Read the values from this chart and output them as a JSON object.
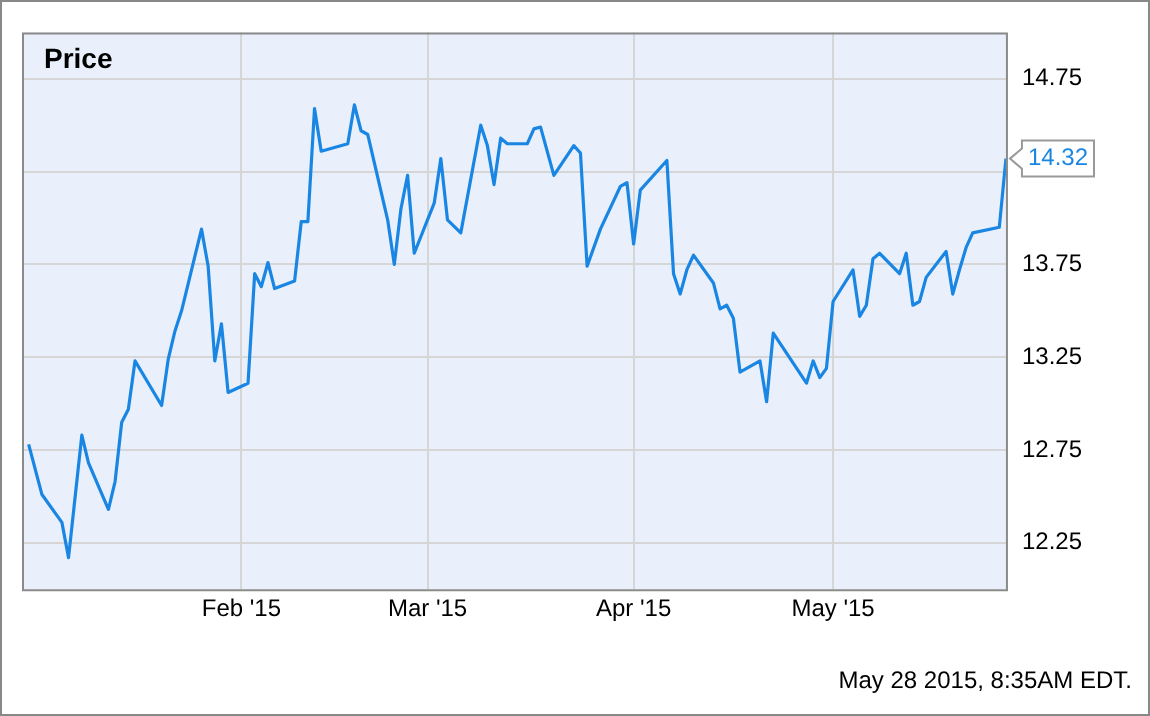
{
  "chart_data": {
    "type": "line",
    "title": "Price",
    "x": [
      "2014-12-31",
      "2015-01-02",
      "2015-01-05",
      "2015-01-06",
      "2015-01-08",
      "2015-01-09",
      "2015-01-12",
      "2015-01-13",
      "2015-01-14",
      "2015-01-15",
      "2015-01-16",
      "2015-01-20",
      "2015-01-21",
      "2015-01-22",
      "2015-01-23",
      "2015-01-26",
      "2015-01-27",
      "2015-01-28",
      "2015-01-29",
      "2015-01-30",
      "2015-02-02",
      "2015-02-03",
      "2015-02-04",
      "2015-02-05",
      "2015-02-06",
      "2015-02-09",
      "2015-02-10",
      "2015-02-11",
      "2015-02-12",
      "2015-02-13",
      "2015-02-17",
      "2015-02-18",
      "2015-02-19",
      "2015-02-20",
      "2015-02-23",
      "2015-02-24",
      "2015-02-25",
      "2015-02-26",
      "2015-02-27",
      "2015-03-02",
      "2015-03-03",
      "2015-03-04",
      "2015-03-06",
      "2015-03-09",
      "2015-03-10",
      "2015-03-11",
      "2015-03-12",
      "2015-03-13",
      "2015-03-16",
      "2015-03-17",
      "2015-03-18",
      "2015-03-20",
      "2015-03-23",
      "2015-03-24",
      "2015-03-25",
      "2015-03-27",
      "2015-03-30",
      "2015-03-31",
      "2015-04-01",
      "2015-04-02",
      "2015-04-06",
      "2015-04-07",
      "2015-04-08",
      "2015-04-09",
      "2015-04-10",
      "2015-04-13",
      "2015-04-14",
      "2015-04-15",
      "2015-04-16",
      "2015-04-17",
      "2015-04-20",
      "2015-04-21",
      "2015-04-22",
      "2015-04-27",
      "2015-04-28",
      "2015-04-29",
      "2015-04-30",
      "2015-05-01",
      "2015-05-04",
      "2015-05-05",
      "2015-05-06",
      "2015-05-07",
      "2015-05-08",
      "2015-05-11",
      "2015-05-12",
      "2015-05-13",
      "2015-05-14",
      "2015-05-15",
      "2015-05-18",
      "2015-05-19",
      "2015-05-20",
      "2015-05-21",
      "2015-05-22",
      "2015-05-26",
      "2015-05-27"
    ],
    "series": [
      {
        "color": "#1a86e3",
        "values": [
          12.78,
          12.51,
          12.36,
          12.17,
          12.83,
          12.68,
          12.43,
          12.58,
          12.9,
          12.97,
          13.23,
          12.99,
          13.24,
          13.39,
          13.5,
          13.94,
          13.74,
          13.23,
          13.43,
          13.06,
          13.11,
          13.7,
          13.63,
          13.76,
          13.62,
          13.66,
          13.98,
          13.98,
          14.59,
          14.36,
          14.4,
          14.61,
          14.47,
          14.45,
          13.99,
          13.75,
          14.05,
          14.23,
          13.81,
          14.08,
          14.32,
          13.99,
          13.92,
          14.5,
          14.39,
          14.18,
          14.43,
          14.4,
          14.4,
          14.48,
          14.49,
          14.23,
          14.39,
          14.35,
          13.74,
          13.94,
          14.17,
          14.19,
          13.86,
          14.15,
          14.31,
          13.7,
          13.59,
          13.72,
          13.8,
          13.65,
          13.51,
          13.53,
          13.46,
          13.17,
          13.23,
          13.01,
          13.38,
          13.11,
          13.23,
          13.14,
          13.19,
          13.55,
          13.72,
          13.47,
          13.53,
          13.78,
          13.81,
          13.7,
          13.81,
          13.53,
          13.55,
          13.68,
          13.82,
          13.59,
          13.72,
          13.84,
          13.92,
          13.95,
          14.32
        ]
      }
    ],
    "xlim": [
      "2014-12-30",
      "2015-05-27"
    ],
    "xticks": [
      {
        "value": "2015-02-01",
        "label": "Feb '15"
      },
      {
        "value": "2015-03-01",
        "label": "Mar '15"
      },
      {
        "value": "2015-04-01",
        "label": "Apr '15"
      },
      {
        "value": "2015-05-01",
        "label": "May '15"
      }
    ],
    "ylim": [
      12,
      15
    ],
    "yticks": [
      12.25,
      12.75,
      13.25,
      13.75,
      {
        "value": 14.25,
        "label": null
      },
      14.75
    ],
    "grid": true,
    "marker": "none",
    "line_style": "solid",
    "legend": false,
    "annotations": [
      {
        "text": "14.32",
        "x": "2015-05-27",
        "y": 14.32
      },
      "May 28 2015, 8:35AM EDT."
    ]
  }
}
